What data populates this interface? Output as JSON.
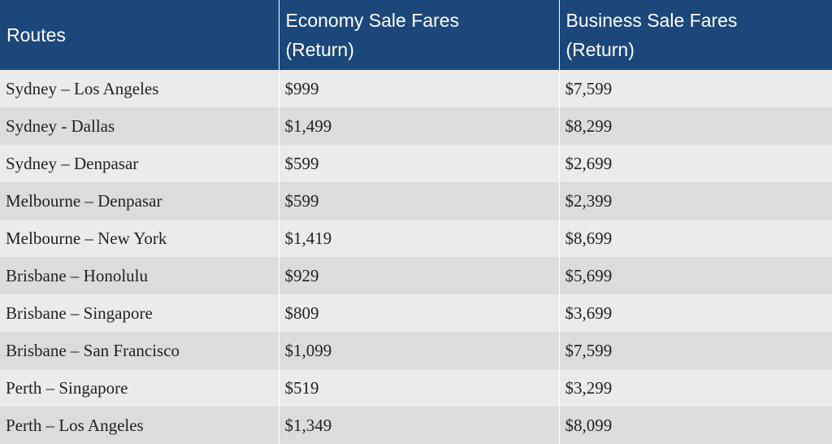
{
  "table": {
    "headers": {
      "routes": "Routes",
      "economy_line1": "Economy Sale Fares",
      "economy_line2": "(Return)",
      "business_line1": "Business Sale Fares",
      "business_line2": "(Return)"
    },
    "colors": {
      "header_bg": "#1c477a",
      "header_text": "#ffffff",
      "row_odd_bg": "#ebebeb",
      "row_even_bg": "#dcdcdc"
    },
    "rows": [
      {
        "route": "Sydney – Los Angeles",
        "economy": "$999",
        "business": "$7,599"
      },
      {
        "route": "Sydney - Dallas",
        "economy": "$1,499",
        "business": "$8,299"
      },
      {
        "route": "Sydney – Denpasar",
        "economy": "$599",
        "business": "$2,699"
      },
      {
        "route": "Melbourne – Denpasar",
        "economy": "$599",
        "business": "$2,399"
      },
      {
        "route": "Melbourne – New York",
        "economy": "$1,419",
        "business": "$8,699"
      },
      {
        "route": "Brisbane – Honolulu",
        "economy": "$929",
        "business": "$5,699"
      },
      {
        "route": "Brisbane – Singapore",
        "economy": "$809",
        "business": "$3,699"
      },
      {
        "route": "Brisbane – San Francisco",
        "economy": "$1,099",
        "business": "$7,599"
      },
      {
        "route": "Perth – Singapore",
        "economy": "$519",
        "business": "$3,299"
      },
      {
        "route": "Perth – Los Angeles",
        "economy": "$1,349",
        "business": "$8,099"
      }
    ]
  }
}
